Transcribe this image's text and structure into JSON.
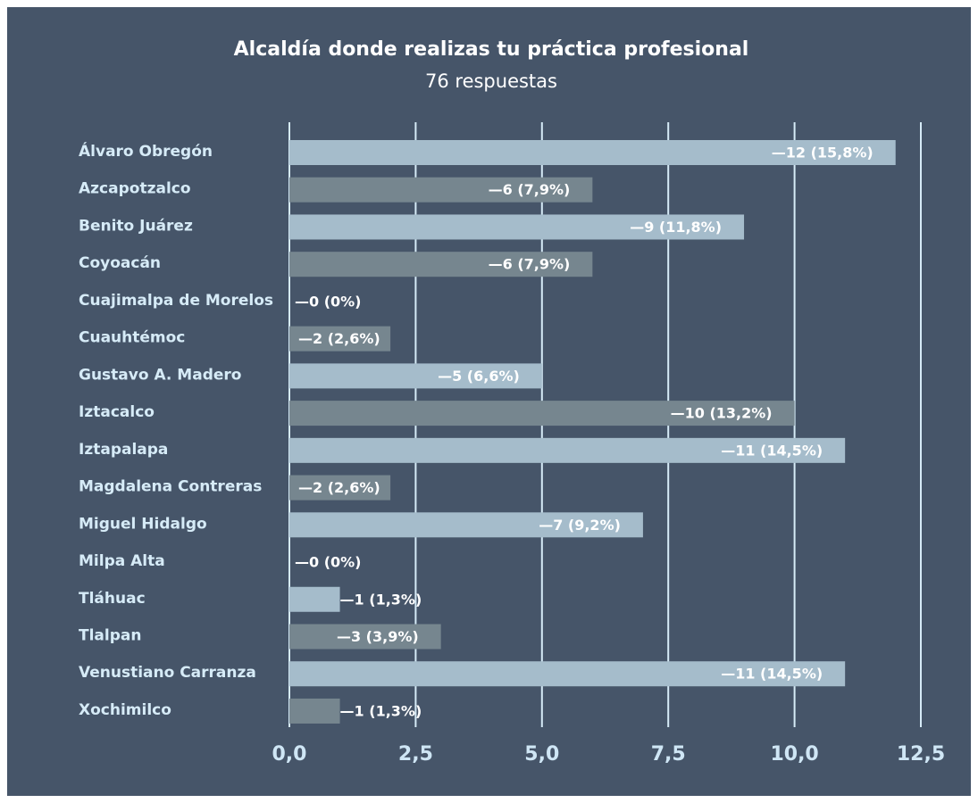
{
  "chart_data": {
    "type": "hbar",
    "title": "Alcaldía donde realizas tu práctica profesional",
    "subtitle": "76 respuestas",
    "categories": [
      "Álvaro Obregón",
      "Azcapotzalco",
      "Benito Juárez",
      "Coyoacán",
      "Cuajimalpa de Morelos",
      "Cuauhtémoc",
      "Gustavo A. Madero",
      "Iztacalco",
      "Iztapalapa",
      "Magdalena Contreras",
      "Miguel Hidalgo",
      "Milpa Alta",
      "Tláhuac",
      "Tlalpan",
      "Venustiano Carranza",
      "Xochimilco"
    ],
    "values": [
      12,
      6,
      9,
      6,
      0,
      2,
      5,
      10,
      11,
      2,
      7,
      0,
      1,
      3,
      11,
      1
    ],
    "value_labels": [
      "—12 (15,8%)",
      "—6 (7,9%)",
      "—9 (11,8%)",
      "—6 (7,9%)",
      "—0 (0%)",
      "—2 (2,6%)",
      "—5 (6,6%)",
      "—10 (13,2%)",
      "—11 (14,5%)",
      "—2 (2,6%)",
      "—7 (9,2%)",
      "—0 (0%)",
      "—1 (1,3%)",
      "—3 (3,9%)",
      "—11 (14,5%)",
      "—1 (1,3%)"
    ],
    "colors": [
      "#a5bccb",
      "#76868f"
    ],
    "xlim": [
      0,
      12.5
    ],
    "xticks": [
      {
        "value": 0,
        "label": "0,0"
      },
      {
        "value": 2.5,
        "label": "2,5"
      },
      {
        "value": 5,
        "label": "5,0"
      },
      {
        "value": 7.5,
        "label": "7,5"
      },
      {
        "value": 10,
        "label": "10,0"
      },
      {
        "value": 12.5,
        "label": "12,5"
      }
    ],
    "grid": true
  }
}
